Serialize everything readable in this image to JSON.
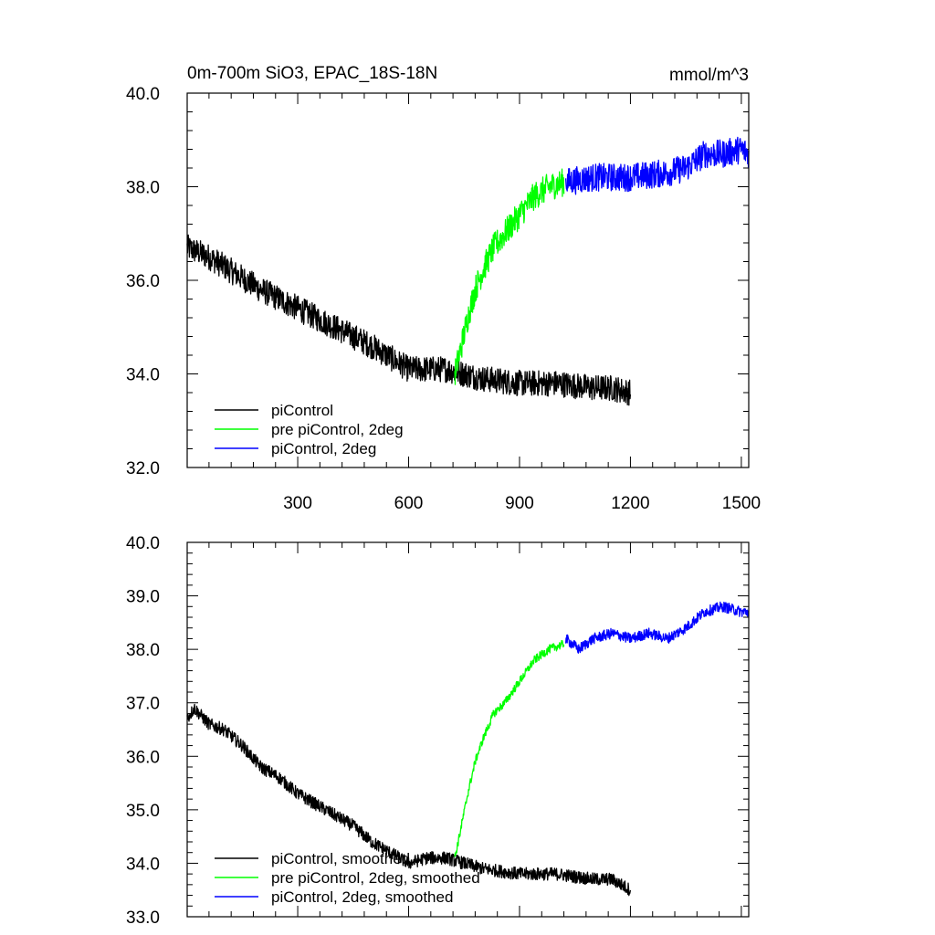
{
  "colors": {
    "piControl": "#000000",
    "pre_piControl_2deg": "#00ff00",
    "piControl_2deg": "#0000ff",
    "frame": "#000000",
    "background": "#ffffff"
  },
  "chart_data": [
    {
      "type": "line",
      "title": "0m-700m SiO3, EPAC_18S-18N",
      "units": "mmol/m^3",
      "xlabel": "",
      "ylabel": "",
      "xlim": [
        1,
        1520
      ],
      "ylim": [
        32.0,
        40.0
      ],
      "x_ticks": [
        300,
        600,
        900,
        1200,
        1500
      ],
      "x_tick_labels": [
        "300",
        "600",
        "900",
        "1200",
        "1500"
      ],
      "y_ticks": [
        32.0,
        34.0,
        36.0,
        38.0,
        40.0
      ],
      "y_tick_labels": [
        "32.0",
        "34.0",
        "36.0",
        "38.0",
        "40.0"
      ],
      "grid": false,
      "legend_position": "bottom-left",
      "legend": [
        "piControl",
        "pre piControl, 2deg",
        "piControl, 2deg"
      ],
      "series": [
        {
          "name": "piControl",
          "color": "#000000",
          "noise": 0.28,
          "x": [
            1,
            60,
            120,
            200,
            300,
            400,
            500,
            560,
            600,
            650,
            700,
            750,
            800,
            900,
            1000,
            1100,
            1150,
            1200
          ],
          "y": [
            36.7,
            36.5,
            36.2,
            35.8,
            35.4,
            35.0,
            34.6,
            34.3,
            34.1,
            34.1,
            34.1,
            34.0,
            33.9,
            33.8,
            33.8,
            33.7,
            33.7,
            33.6
          ]
        },
        {
          "name": "pre piControl, 2deg",
          "color": "#00ff00",
          "noise": 0.3,
          "x": [
            725,
            740,
            760,
            780,
            800,
            830,
            860,
            900,
            940,
            980,
            1020
          ],
          "y": [
            34.0,
            34.5,
            35.2,
            35.8,
            36.2,
            36.7,
            37.0,
            37.4,
            37.8,
            38.0,
            38.1
          ]
        },
        {
          "name": "piControl, 2deg",
          "color": "#0000ff",
          "noise": 0.3,
          "x": [
            1025,
            1100,
            1200,
            1300,
            1350,
            1400,
            1450,
            1500,
            1520
          ],
          "y": [
            38.1,
            38.2,
            38.2,
            38.3,
            38.4,
            38.7,
            38.7,
            38.8,
            38.7
          ]
        }
      ]
    },
    {
      "type": "line",
      "title": "",
      "xlabel": "",
      "ylabel": "",
      "xlim": [
        1,
        1520
      ],
      "ylim": [
        33.0,
        40.0
      ],
      "x_ticks": [
        300,
        600,
        900,
        1200,
        1500
      ],
      "y_ticks": [
        33.0,
        34.0,
        35.0,
        36.0,
        37.0,
        38.0,
        39.0,
        40.0
      ],
      "y_tick_labels": [
        "33.0",
        "34.0",
        "35.0",
        "36.0",
        "37.0",
        "38.0",
        "39.0",
        "40.0"
      ],
      "grid": false,
      "legend_position": "bottom-left",
      "legend": [
        "piControl, smoothed",
        "pre piControl, 2deg, smoothed",
        "piControl, 2deg, smoothed"
      ],
      "series": [
        {
          "name": "piControl, smoothed",
          "color": "#000000",
          "noise": 0.12,
          "x": [
            1,
            20,
            60,
            100,
            150,
            200,
            250,
            300,
            350,
            400,
            450,
            500,
            550,
            600,
            650,
            700,
            750,
            800,
            900,
            1000,
            1100,
            1150,
            1200
          ],
          "y": [
            36.7,
            36.9,
            36.6,
            36.5,
            36.2,
            35.8,
            35.6,
            35.3,
            35.1,
            34.9,
            34.7,
            34.4,
            34.2,
            34.0,
            34.1,
            34.1,
            34.0,
            33.9,
            33.8,
            33.8,
            33.7,
            33.7,
            33.5
          ]
        },
        {
          "name": "pre piControl, 2deg, smoothed",
          "color": "#00ff00",
          "noise": 0.08,
          "x": [
            725,
            740,
            760,
            780,
            800,
            830,
            860,
            900,
            940,
            980,
            1020
          ],
          "y": [
            34.1,
            34.6,
            35.3,
            35.9,
            36.3,
            36.8,
            37.0,
            37.4,
            37.8,
            38.0,
            38.1
          ]
        },
        {
          "name": "piControl, 2deg, smoothed",
          "color": "#0000ff",
          "noise": 0.1,
          "x": [
            1025,
            1060,
            1100,
            1150,
            1200,
            1250,
            1300,
            1350,
            1400,
            1450,
            1500,
            1520
          ],
          "y": [
            38.2,
            38.0,
            38.2,
            38.3,
            38.2,
            38.3,
            38.2,
            38.4,
            38.7,
            38.8,
            38.7,
            38.7
          ]
        }
      ]
    }
  ]
}
